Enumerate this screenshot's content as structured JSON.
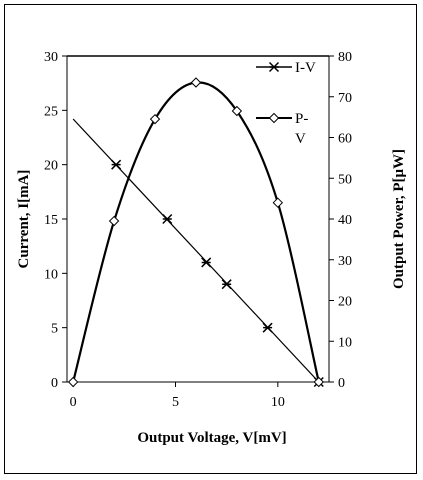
{
  "chart_data": {
    "type": "line",
    "xlabel": "Output Voltage, V[mV]",
    "ylabel_left": "Current, I[mA]",
    "ylabel_right": "Output Power, P[μW]",
    "xlim": [
      -0.3,
      12.5
    ],
    "ylim_left": [
      0,
      30
    ],
    "ylim_right": [
      0,
      80
    ],
    "x_ticks": [
      0,
      5,
      10
    ],
    "y_ticks_left": [
      0,
      5,
      10,
      15,
      20,
      25,
      30
    ],
    "y_ticks_right": [
      0,
      10,
      20,
      30,
      40,
      50,
      60,
      70,
      80
    ],
    "grid": false,
    "legend_position": "top-right",
    "series": [
      {
        "name": "I-V",
        "axis": "left",
        "marker": "star",
        "color": "#000000",
        "line_x": [
          0,
          12
        ],
        "line_y": [
          24.2,
          0
        ],
        "x": [
          2.1,
          4.6,
          6.5,
          7.5,
          9.5,
          12
        ],
        "y": [
          20,
          15,
          11,
          9,
          5,
          0
        ]
      },
      {
        "name": "P-V",
        "axis": "right",
        "marker": "diamond",
        "color": "#000000",
        "x": [
          0,
          2,
          4,
          6,
          8,
          10,
          12
        ],
        "y": [
          0,
          39.5,
          64.5,
          73.5,
          66.5,
          44,
          0
        ]
      }
    ]
  }
}
